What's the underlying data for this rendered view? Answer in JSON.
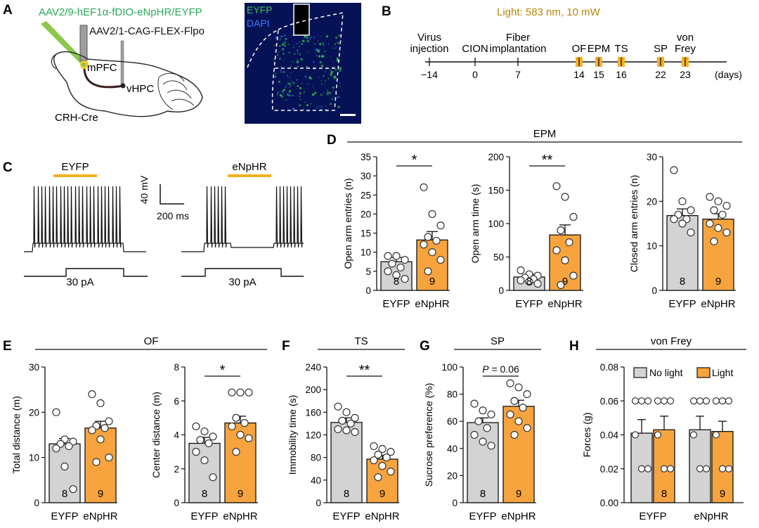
{
  "panels": {
    "A": {
      "letter": "A",
      "virus1": "AAV2/9-hEF1α-fDIO-eNpHR/EYFP",
      "virus2": "AAV2/1-CAG-FLEX-Flpo",
      "mpfc": "mPFC",
      "vhpc": "vHPC",
      "mouse": "CRH-Cre",
      "micro_label1": "EYFP",
      "micro_label2": "DAPI"
    },
    "B": {
      "letter": "B",
      "light": "Light: 583 nm, 10 mW",
      "days_unit": "(days)",
      "events": [
        {
          "label": "Virus\ninjection",
          "day": "−14"
        },
        {
          "label": "CION",
          "day": "0"
        },
        {
          "label": "Fiber\nimplantation",
          "day": "7"
        },
        {
          "label": "OF",
          "day": "14"
        },
        {
          "label": "EPM",
          "day": "15"
        },
        {
          "label": "TS",
          "day": "16"
        },
        {
          "label": "SP",
          "day": "22"
        },
        {
          "label": "von\nFrey",
          "day": "23"
        }
      ]
    },
    "C": {
      "letter": "C",
      "left_label": "EYFP",
      "right_label": "eNpHR",
      "scale_v": "40 mV",
      "scale_t": "200 ms",
      "current": "30 pA"
    },
    "D": {
      "letter": "D",
      "header": "EPM"
    },
    "E": {
      "letter": "E",
      "header": "OF"
    },
    "F": {
      "letter": "F",
      "header": "TS"
    },
    "G": {
      "letter": "G",
      "header": "SP"
    },
    "H": {
      "letter": "H",
      "header": "von Frey",
      "legend_no_light": "No light",
      "legend_light": "Light"
    }
  },
  "colors": {
    "eyfp": "#d3d3d3",
    "enphr": "#f7a43f",
    "light": "#f6b024",
    "virus_green": "#2aa95b",
    "light_text": "#b8860b"
  },
  "chart_data": [
    {
      "id": "D1",
      "type": "bar",
      "categories": [
        "EYFP",
        "eNpHR"
      ],
      "values": [
        7.5,
        13.2
      ],
      "errors": [
        1.1,
        2.2
      ],
      "n": [
        "8",
        "9"
      ],
      "ylabel": "Open arm entries (n)",
      "ylim": [
        0,
        35
      ],
      "yticks": [
        "0",
        "5",
        "10",
        "15",
        "20",
        "25",
        "30",
        "35"
      ],
      "sig": "*",
      "points": [
        [
          9,
          9,
          8,
          7,
          6,
          5,
          4,
          3
        ],
        [
          27,
          20,
          17,
          14,
          13,
          12,
          10,
          8,
          5
        ]
      ]
    },
    {
      "id": "D2",
      "type": "bar",
      "categories": [
        "EYFP",
        "eNpHR"
      ],
      "values": [
        20,
        83
      ],
      "errors": [
        4,
        15
      ],
      "n": [
        "8",
        "9"
      ],
      "ylabel": "Open arm time (s)",
      "ylim": [
        0,
        200
      ],
      "yticks": [
        "0",
        "50",
        "100",
        "150",
        "200"
      ],
      "sig": "**",
      "points": [
        [
          30,
          24,
          22,
          19,
          17,
          15,
          13,
          10
        ],
        [
          156,
          140,
          110,
          90,
          72,
          60,
          45,
          22,
          8
        ]
      ]
    },
    {
      "id": "D3",
      "type": "bar",
      "categories": [
        "EYFP",
        "eNpHR"
      ],
      "values": [
        16.8,
        16.0
      ],
      "errors": [
        1.5,
        1.2
      ],
      "n": [
        "8",
        "9"
      ],
      "ylabel": "Closed arm entries (n)",
      "ylim": [
        0,
        30
      ],
      "yticks": [
        "0",
        "10",
        "20",
        "30"
      ],
      "sig": "",
      "points": [
        [
          27,
          20,
          18,
          17,
          16,
          16,
          15,
          13
        ],
        [
          21,
          20,
          19,
          18,
          17,
          15,
          14,
          13,
          11
        ]
      ]
    },
    {
      "id": "E1",
      "type": "bar",
      "categories": [
        "EYFP",
        "eNpHR"
      ],
      "values": [
        13,
        16.5
      ],
      "errors": [
        1.2,
        1.5
      ],
      "n": [
        "8",
        "9"
      ],
      "ylabel": "Total distance (m)",
      "ylim": [
        0,
        30
      ],
      "yticks": [
        "0",
        "10",
        "20",
        "30"
      ],
      "sig": "",
      "points": [
        [
          20,
          14,
          13.5,
          13,
          12.5,
          12,
          8,
          3
        ],
        [
          24,
          22,
          18,
          17,
          16.5,
          16,
          14,
          10,
          9
        ]
      ]
    },
    {
      "id": "E2",
      "type": "bar",
      "categories": [
        "EYFP",
        "eNpHR"
      ],
      "values": [
        3.5,
        4.7
      ],
      "errors": [
        0.35,
        0.4
      ],
      "n": [
        "8",
        "9"
      ],
      "ylabel": "Center distance (m)",
      "ylim": [
        0,
        8
      ],
      "yticks": [
        "0",
        "2",
        "4",
        "6",
        "8"
      ],
      "sig": "*",
      "points": [
        [
          4.5,
          4.2,
          3.9,
          3.7,
          3.5,
          3.0,
          2.5,
          1.5
        ],
        [
          6.5,
          6.5,
          6.5,
          5.0,
          4.7,
          4.5,
          4.0,
          3.8,
          3.0
        ]
      ]
    },
    {
      "id": "F1",
      "type": "bar",
      "categories": [
        "EYFP",
        "eNpHR"
      ],
      "values": [
        142,
        77
      ],
      "errors": [
        8,
        7
      ],
      "n": [
        "8",
        "9"
      ],
      "ylabel": "Immobility time (s)",
      "ylim": [
        0,
        240
      ],
      "yticks": [
        "0",
        "40",
        "80",
        "120",
        "160",
        "200",
        "240"
      ],
      "sig": "**",
      "points": [
        [
          170,
          160,
          150,
          145,
          140,
          130,
          128,
          125
        ],
        [
          100,
          95,
          90,
          85,
          80,
          75,
          65,
          55,
          45
        ]
      ]
    },
    {
      "id": "G1",
      "type": "bar",
      "categories": [
        "EYFP",
        "eNpHR"
      ],
      "values": [
        59,
        71
      ],
      "errors": [
        3.5,
        4.5
      ],
      "n": [
        "8",
        "9"
      ],
      "ylabel": "Sucrose preference (%)",
      "ylim": [
        0,
        100
      ],
      "yticks": [
        "0",
        "20",
        "40",
        "60",
        "80",
        "100"
      ],
      "sig": "P = 0.06",
      "points": [
        [
          73,
          68,
          65,
          60,
          55,
          50,
          45,
          42
        ],
        [
          88,
          85,
          80,
          75,
          70,
          65,
          60,
          55,
          50
        ]
      ]
    },
    {
      "id": "H1",
      "type": "bar",
      "categories": [
        "EYFP",
        "eNpHR"
      ],
      "series": [
        {
          "name": "No light",
          "values": [
            0.041,
            0.043
          ],
          "errors": [
            0.008,
            0.008
          ]
        },
        {
          "name": "Light",
          "values": [
            0.043,
            0.042
          ],
          "errors": [
            0.008,
            0.006
          ]
        }
      ],
      "n": [
        "8",
        "9"
      ],
      "ylabel": "Forces (g)",
      "ylim": [
        0,
        0.08
      ],
      "yticks": [
        "0.00",
        "0.02",
        "0.04",
        "0.06",
        "0.08"
      ],
      "sig": ""
    }
  ]
}
